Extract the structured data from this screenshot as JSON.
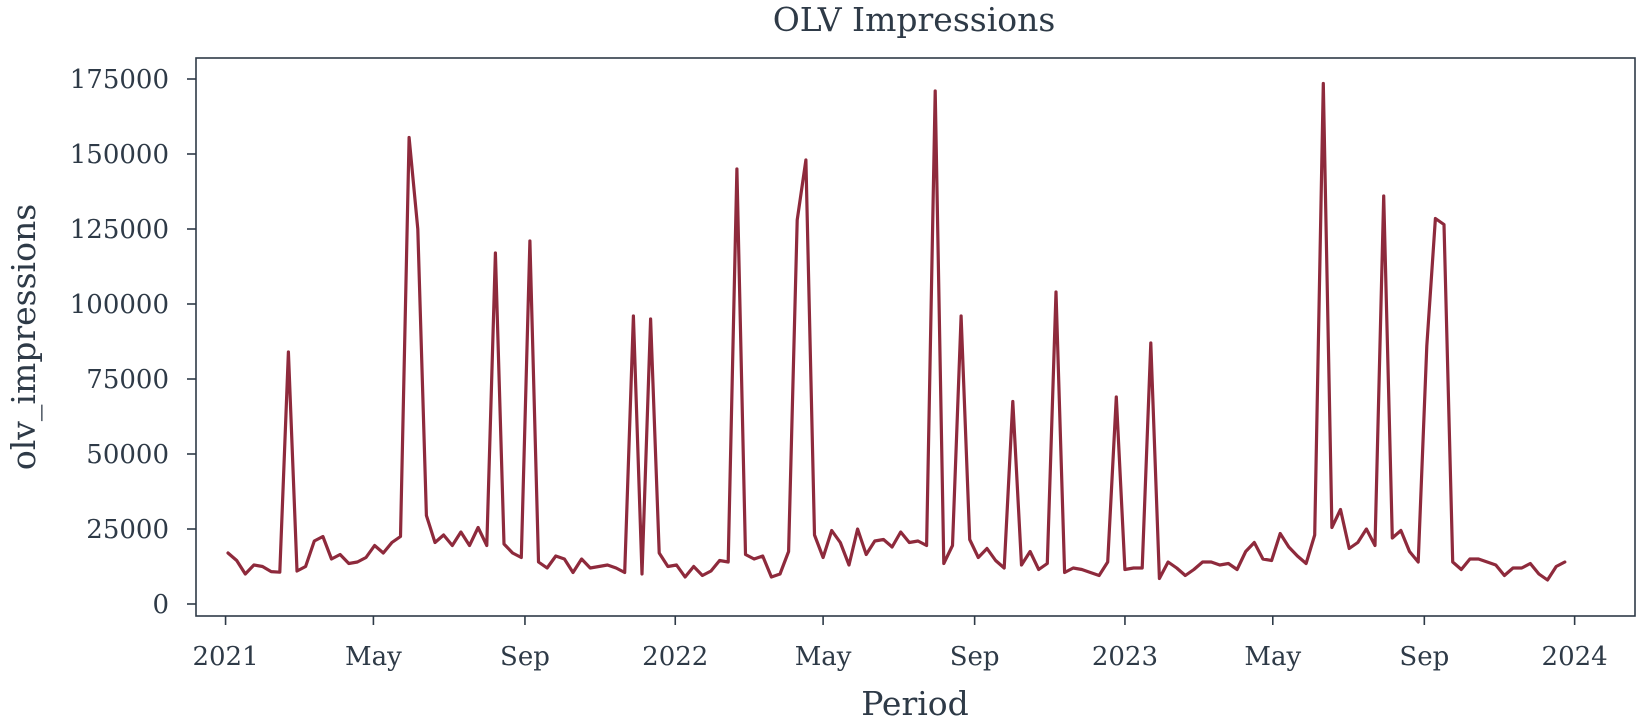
{
  "chart_data": {
    "type": "line",
    "title": "OLV Impressions",
    "xlabel": "Period",
    "ylabel": "olv_impressions",
    "xlim": [
      "2020-12-08",
      "2024-02-19"
    ],
    "ylim": [
      -4000,
      182000
    ],
    "grid": false,
    "colors": {
      "line": "#8e2a3c",
      "axes": "#2e3a47",
      "text": "#2e3a47"
    },
    "x_ticks": [
      {
        "label": "2021",
        "date": "2021-01-01"
      },
      {
        "label": "May",
        "date": "2021-05-01"
      },
      {
        "label": "Sep",
        "date": "2021-09-01"
      },
      {
        "label": "2022",
        "date": "2022-01-01"
      },
      {
        "label": "May",
        "date": "2022-05-01"
      },
      {
        "label": "Sep",
        "date": "2022-09-01"
      },
      {
        "label": "2023",
        "date": "2023-01-01"
      },
      {
        "label": "May",
        "date": "2023-05-01"
      },
      {
        "label": "Sep",
        "date": "2023-09-01"
      },
      {
        "label": "2024",
        "date": "2024-01-01"
      }
    ],
    "y_ticks": [
      {
        "label": "0",
        "value": 0
      },
      {
        "label": "25000",
        "value": 25000
      },
      {
        "label": "50000",
        "value": 50000
      },
      {
        "label": "75000",
        "value": 75000
      },
      {
        "label": "100000",
        "value": 100000
      },
      {
        "label": "125000",
        "value": 125000
      },
      {
        "label": "150000",
        "value": 150000
      },
      {
        "label": "175000",
        "value": 175000
      }
    ],
    "series": [
      {
        "color": "#8e2a3c",
        "points": [
          [
            "2021-01-03",
            17000
          ],
          [
            "2021-01-10",
            14500
          ],
          [
            "2021-01-17",
            10000
          ],
          [
            "2021-01-24",
            13000
          ],
          [
            "2021-01-31",
            12500
          ],
          [
            "2021-02-07",
            10800
          ],
          [
            "2021-02-14",
            10600
          ],
          [
            "2021-02-21",
            84000
          ],
          [
            "2021-02-28",
            11000
          ],
          [
            "2021-03-07",
            12500
          ],
          [
            "2021-03-14",
            21000
          ],
          [
            "2021-03-21",
            22500
          ],
          [
            "2021-03-28",
            15000
          ],
          [
            "2021-04-04",
            16500
          ],
          [
            "2021-04-11",
            13500
          ],
          [
            "2021-04-18",
            14000
          ],
          [
            "2021-04-25",
            15500
          ],
          [
            "2021-05-02",
            19500
          ],
          [
            "2021-05-09",
            17000
          ],
          [
            "2021-05-16",
            20500
          ],
          [
            "2021-05-23",
            22500
          ],
          [
            "2021-05-30",
            155500
          ],
          [
            "2021-06-06",
            125000
          ],
          [
            "2021-06-13",
            29500
          ],
          [
            "2021-06-20",
            20500
          ],
          [
            "2021-06-27",
            23000
          ],
          [
            "2021-07-04",
            19500
          ],
          [
            "2021-07-11",
            24000
          ],
          [
            "2021-07-18",
            19500
          ],
          [
            "2021-07-25",
            25500
          ],
          [
            "2021-08-01",
            19500
          ],
          [
            "2021-08-08",
            117000
          ],
          [
            "2021-08-15",
            20000
          ],
          [
            "2021-08-22",
            17000
          ],
          [
            "2021-08-29",
            15500
          ],
          [
            "2021-09-05",
            121000
          ],
          [
            "2021-09-12",
            14000
          ],
          [
            "2021-09-19",
            12000
          ],
          [
            "2021-09-26",
            16000
          ],
          [
            "2021-10-03",
            15000
          ],
          [
            "2021-10-10",
            10500
          ],
          [
            "2021-10-17",
            15000
          ],
          [
            "2021-10-24",
            12000
          ],
          [
            "2021-10-31",
            12500
          ],
          [
            "2021-11-07",
            13000
          ],
          [
            "2021-11-14",
            12000
          ],
          [
            "2021-11-21",
            10500
          ],
          [
            "2021-11-28",
            96000
          ],
          [
            "2021-12-05",
            10000
          ],
          [
            "2021-12-12",
            95000
          ],
          [
            "2021-12-19",
            17000
          ],
          [
            "2021-12-26",
            12500
          ],
          [
            "2022-01-02",
            13000
          ],
          [
            "2022-01-09",
            9000
          ],
          [
            "2022-01-16",
            12500
          ],
          [
            "2022-01-23",
            9500
          ],
          [
            "2022-01-30",
            11000
          ],
          [
            "2022-02-06",
            14500
          ],
          [
            "2022-02-13",
            14000
          ],
          [
            "2022-02-20",
            145000
          ],
          [
            "2022-02-27",
            16500
          ],
          [
            "2022-03-06",
            15000
          ],
          [
            "2022-03-13",
            16000
          ],
          [
            "2022-03-20",
            9000
          ],
          [
            "2022-03-27",
            10000
          ],
          [
            "2022-04-03",
            17500
          ],
          [
            "2022-04-10",
            128000
          ],
          [
            "2022-04-17",
            148000
          ],
          [
            "2022-04-24",
            23000
          ],
          [
            "2022-05-01",
            15500
          ],
          [
            "2022-05-08",
            24500
          ],
          [
            "2022-05-15",
            20500
          ],
          [
            "2022-05-22",
            13000
          ],
          [
            "2022-05-29",
            25000
          ],
          [
            "2022-06-05",
            16500
          ],
          [
            "2022-06-12",
            21000
          ],
          [
            "2022-06-19",
            21500
          ],
          [
            "2022-06-26",
            19000
          ],
          [
            "2022-07-03",
            24000
          ],
          [
            "2022-07-10",
            20500
          ],
          [
            "2022-07-17",
            21000
          ],
          [
            "2022-07-24",
            19500
          ],
          [
            "2022-07-31",
            171000
          ],
          [
            "2022-08-07",
            13500
          ],
          [
            "2022-08-14",
            19500
          ],
          [
            "2022-08-21",
            96000
          ],
          [
            "2022-08-28",
            21500
          ],
          [
            "2022-09-04",
            15500
          ],
          [
            "2022-09-11",
            18500
          ],
          [
            "2022-09-18",
            14500
          ],
          [
            "2022-09-25",
            12000
          ],
          [
            "2022-10-02",
            67500
          ],
          [
            "2022-10-09",
            13000
          ],
          [
            "2022-10-16",
            17500
          ],
          [
            "2022-10-23",
            11500
          ],
          [
            "2022-10-30",
            13500
          ],
          [
            "2022-11-06",
            104000
          ],
          [
            "2022-11-13",
            10500
          ],
          [
            "2022-11-20",
            12000
          ],
          [
            "2022-11-27",
            11500
          ],
          [
            "2022-12-04",
            10500
          ],
          [
            "2022-12-11",
            9500
          ],
          [
            "2022-12-18",
            14000
          ],
          [
            "2022-12-25",
            69000
          ],
          [
            "2023-01-01",
            11500
          ],
          [
            "2023-01-08",
            12000
          ],
          [
            "2023-01-15",
            12000
          ],
          [
            "2023-01-22",
            87000
          ],
          [
            "2023-01-29",
            8500
          ],
          [
            "2023-02-05",
            14000
          ],
          [
            "2023-02-12",
            12000
          ],
          [
            "2023-02-19",
            9500
          ],
          [
            "2023-02-26",
            11500
          ],
          [
            "2023-03-05",
            14000
          ],
          [
            "2023-03-12",
            14000
          ],
          [
            "2023-03-19",
            13000
          ],
          [
            "2023-03-26",
            13500
          ],
          [
            "2023-04-02",
            11500
          ],
          [
            "2023-04-09",
            17500
          ],
          [
            "2023-04-16",
            20500
          ],
          [
            "2023-04-23",
            15000
          ],
          [
            "2023-04-30",
            14500
          ],
          [
            "2023-05-07",
            23500
          ],
          [
            "2023-05-14",
            19000
          ],
          [
            "2023-05-21",
            16000
          ],
          [
            "2023-05-28",
            13500
          ],
          [
            "2023-06-04",
            23000
          ],
          [
            "2023-06-11",
            173500
          ],
          [
            "2023-06-18",
            25500
          ],
          [
            "2023-06-25",
            31500
          ],
          [
            "2023-07-02",
            18500
          ],
          [
            "2023-07-09",
            20500
          ],
          [
            "2023-07-16",
            25000
          ],
          [
            "2023-07-23",
            19500
          ],
          [
            "2023-07-30",
            136000
          ],
          [
            "2023-08-06",
            22000
          ],
          [
            "2023-08-13",
            24500
          ],
          [
            "2023-08-20",
            17500
          ],
          [
            "2023-08-27",
            14000
          ],
          [
            "2023-09-03",
            86000
          ],
          [
            "2023-09-10",
            128500
          ],
          [
            "2023-09-17",
            126500
          ],
          [
            "2023-09-24",
            14000
          ],
          [
            "2023-10-01",
            11500
          ],
          [
            "2023-10-08",
            15000
          ],
          [
            "2023-10-15",
            15000
          ],
          [
            "2023-10-22",
            14000
          ],
          [
            "2023-10-29",
            13000
          ],
          [
            "2023-11-05",
            9500
          ],
          [
            "2023-11-12",
            12000
          ],
          [
            "2023-11-19",
            12000
          ],
          [
            "2023-11-26",
            13500
          ],
          [
            "2023-12-03",
            10000
          ],
          [
            "2023-12-10",
            8000
          ],
          [
            "2023-12-17",
            12500
          ],
          [
            "2023-12-24",
            14000
          ]
        ]
      }
    ]
  }
}
